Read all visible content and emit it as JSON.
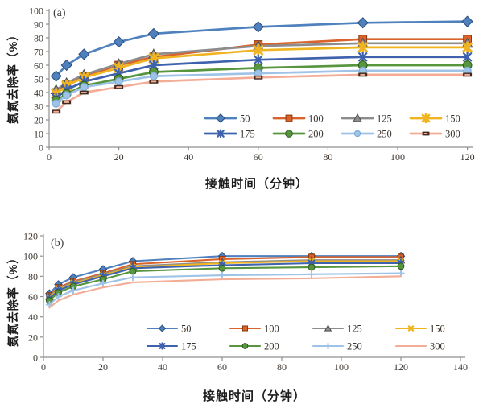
{
  "figure": {
    "background": "#ffffff",
    "text_color": "#3a332c",
    "axis_color": "#8f8f8f"
  },
  "chart_data": [
    {
      "type": "line",
      "panel_label": "(a)",
      "xlabel": "接触时间（分钟）",
      "ylabel": "氨氮去除率（%）",
      "xlim": [
        0,
        125
      ],
      "ylim": [
        0,
        100
      ],
      "x_ticks": [
        0,
        20,
        40,
        60,
        80,
        100,
        120
      ],
      "y_ticks": [
        0,
        10,
        20,
        30,
        40,
        50,
        60,
        70,
        80,
        90,
        100
      ],
      "grid": false,
      "legend_position": "inside-bottom-right",
      "x": [
        2,
        5,
        10,
        20,
        30,
        60,
        90,
        120
      ],
      "series": [
        {
          "name": "50",
          "color": "#4E81BD",
          "edge": "#2c4d79",
          "marker": "diamond",
          "values": [
            52,
            60,
            68,
            77,
            83,
            88,
            91,
            92
          ]
        },
        {
          "name": "100",
          "color": "#D9632B",
          "edge": "#8a3a10",
          "marker": "square",
          "values": [
            40,
            46,
            52,
            60,
            66,
            75,
            79,
            79
          ]
        },
        {
          "name": "125",
          "color": "#8C8C8C",
          "edge": "#4f4f4f",
          "marker": "triangle",
          "values": [
            42,
            47,
            53,
            61,
            68,
            74,
            76,
            76
          ]
        },
        {
          "name": "150",
          "color": "#EFB41F",
          "edge": "#a87a10",
          "marker": "star",
          "values": [
            39,
            45,
            51,
            58,
            65,
            71,
            73,
            73
          ]
        },
        {
          "name": "175",
          "color": "#3E62AD",
          "edge": "#233f6e",
          "marker": "asterisk",
          "values": [
            36,
            42,
            48,
            54,
            60,
            64,
            66,
            66
          ]
        },
        {
          "name": "200",
          "color": "#57953E",
          "edge": "#2c5a1c",
          "marker": "circle",
          "values": [
            34,
            39,
            45,
            50,
            55,
            58,
            60,
            60
          ]
        },
        {
          "name": "250",
          "color": "#9EC3E6",
          "edge": "#79a8d8",
          "marker": "dot",
          "values": [
            32,
            38,
            44,
            48,
            52,
            54,
            56,
            56
          ]
        },
        {
          "name": "300",
          "color": "#F3AC96",
          "edge": "#3f2b1f",
          "marker": "dash",
          "values": [
            26,
            33,
            40,
            44,
            48,
            51,
            53,
            53
          ]
        }
      ]
    },
    {
      "type": "line",
      "panel_label": "(b)",
      "xlabel": "接触时间（分钟）",
      "ylabel": "氨氮去除率（%）",
      "xlim": [
        0,
        145
      ],
      "ylim": [
        0,
        120
      ],
      "x_ticks": [
        0,
        20,
        40,
        60,
        80,
        100,
        120,
        140
      ],
      "y_ticks": [
        0,
        20,
        40,
        60,
        80,
        100,
        120
      ],
      "grid": false,
      "legend_position": "inside-bottom-center",
      "x": [
        2,
        5,
        10,
        20,
        30,
        60,
        90,
        120
      ],
      "series": [
        {
          "name": "50",
          "color": "#4E81BD",
          "edge": "#2c4d79",
          "marker": "diamond",
          "values": [
            63,
            72,
            79,
            87,
            95,
            100,
            100,
            100
          ]
        },
        {
          "name": "100",
          "color": "#D9632B",
          "edge": "#8a3a10",
          "marker": "square",
          "values": [
            61,
            69,
            75,
            83,
            92,
            97,
            99,
            99
          ]
        },
        {
          "name": "125",
          "color": "#8C8C8C",
          "edge": "#4f4f4f",
          "marker": "triangle",
          "values": [
            60,
            68,
            74,
            82,
            90,
            94,
            96,
            96
          ]
        },
        {
          "name": "150",
          "color": "#EFB41F",
          "edge": "#a87a10",
          "marker": "x",
          "values": [
            59,
            67,
            73,
            81,
            89,
            93,
            95,
            95
          ]
        },
        {
          "name": "175",
          "color": "#3E62AD",
          "edge": "#233f6e",
          "marker": "asterisk",
          "values": [
            58,
            66,
            72,
            80,
            88,
            91,
            93,
            93
          ]
        },
        {
          "name": "200",
          "color": "#57953E",
          "edge": "#2c5a1c",
          "marker": "circle",
          "values": [
            56,
            64,
            70,
            77,
            85,
            88,
            89,
            90
          ]
        },
        {
          "name": "250",
          "color": "#9EC3E6",
          "edge": "#79a8d8",
          "marker": "plus",
          "values": [
            52,
            60,
            66,
            73,
            79,
            81,
            82,
            83
          ]
        },
        {
          "name": "300",
          "color": "#F3AC96",
          "edge": "#3f2b1f",
          "marker": "none",
          "values": [
            49,
            56,
            62,
            69,
            74,
            77,
            78,
            80
          ]
        }
      ]
    }
  ]
}
